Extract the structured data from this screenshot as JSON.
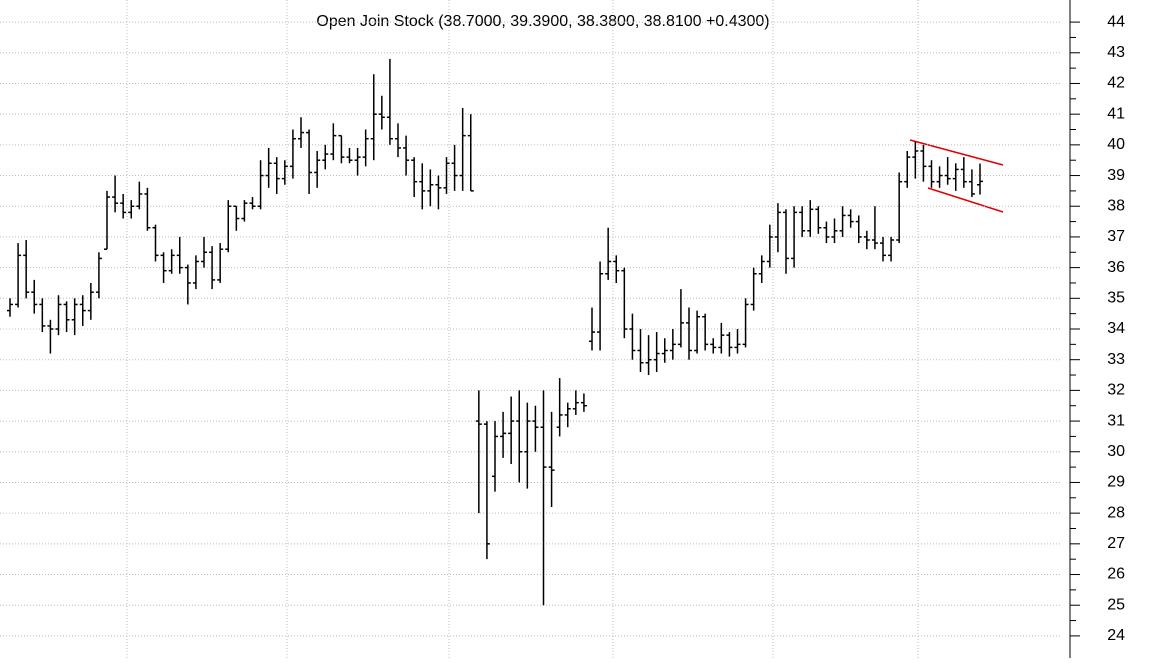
{
  "chart_data": {
    "type": "ohlc",
    "subtitle": "Open Join Stock (38.7000, 39.3900, 38.3800, 38.8100 +0.4300)",
    "color": "#000000",
    "grid": true,
    "ylim": [
      23.28,
      44.72
    ],
    "yticks": [
      24,
      25,
      26,
      27,
      28,
      29,
      30,
      31,
      32,
      33,
      34,
      35,
      36,
      37,
      38,
      39,
      40,
      41,
      42,
      43,
      44
    ],
    "ohlc": [
      [
        34.6,
        35.0,
        34.4,
        34.8
      ],
      [
        34.8,
        36.8,
        34.7,
        36.4
      ],
      [
        36.4,
        36.9,
        35.0,
        35.2
      ],
      [
        35.2,
        35.6,
        34.5,
        34.8
      ],
      [
        34.8,
        35.0,
        33.9,
        34.1
      ],
      [
        34.1,
        34.3,
        33.2,
        34.0
      ],
      [
        34.0,
        35.1,
        33.8,
        34.8
      ],
      [
        34.8,
        34.9,
        33.9,
        34.3
      ],
      [
        34.3,
        35.0,
        33.8,
        34.8
      ],
      [
        34.8,
        35.1,
        34.1,
        34.6
      ],
      [
        34.6,
        35.5,
        34.3,
        35.2
      ],
      [
        35.2,
        36.5,
        35.0,
        36.3
      ],
      [
        36.6,
        38.5,
        36.6,
        38.3
      ],
      [
        38.3,
        39.0,
        37.8,
        38.1
      ],
      [
        38.1,
        38.4,
        37.6,
        37.8
      ],
      [
        37.8,
        38.2,
        37.6,
        38.0
      ],
      [
        38.0,
        38.8,
        37.9,
        38.4
      ],
      [
        38.4,
        38.6,
        37.2,
        37.3
      ],
      [
        37.3,
        37.4,
        36.2,
        36.4
      ],
      [
        36.4,
        36.5,
        35.5,
        35.9
      ],
      [
        35.9,
        36.6,
        35.8,
        36.4
      ],
      [
        36.4,
        37.0,
        35.8,
        36.0
      ],
      [
        36.0,
        36.1,
        34.8,
        35.5
      ],
      [
        35.5,
        36.4,
        35.3,
        36.2
      ],
      [
        36.2,
        37.0,
        36.0,
        36.5
      ],
      [
        36.5,
        36.7,
        35.3,
        35.6
      ],
      [
        35.6,
        36.8,
        35.5,
        36.6
      ],
      [
        36.6,
        38.2,
        36.5,
        38.0
      ],
      [
        38.0,
        38.0,
        37.2,
        37.6
      ],
      [
        37.6,
        38.2,
        37.5,
        38.1
      ],
      [
        38.1,
        38.3,
        37.9,
        38.0
      ],
      [
        38.0,
        39.5,
        37.9,
        39.0
      ],
      [
        39.0,
        39.9,
        38.6,
        39.4
      ],
      [
        39.4,
        39.6,
        38.4,
        38.9
      ],
      [
        38.9,
        39.5,
        38.7,
        39.3
      ],
      [
        39.3,
        40.5,
        38.9,
        40.2
      ],
      [
        40.2,
        40.9,
        39.9,
        40.4
      ],
      [
        40.4,
        40.5,
        38.4,
        39.1
      ],
      [
        39.1,
        39.8,
        38.6,
        39.5
      ],
      [
        39.5,
        40.0,
        39.2,
        39.7
      ],
      [
        39.7,
        40.7,
        39.5,
        40.3
      ],
      [
        40.3,
        40.3,
        39.4,
        39.6
      ],
      [
        39.6,
        39.9,
        39.4,
        39.5
      ],
      [
        39.5,
        39.9,
        39.0,
        39.6
      ],
      [
        39.6,
        40.5,
        39.3,
        40.2
      ],
      [
        40.2,
        42.3,
        39.5,
        41.0
      ],
      [
        41.0,
        41.6,
        40.5,
        40.9
      ],
      [
        40.9,
        42.8,
        40.0,
        40.2
      ],
      [
        40.2,
        40.7,
        39.6,
        39.9
      ],
      [
        39.9,
        40.3,
        39.0,
        39.5
      ],
      [
        39.5,
        39.6,
        38.3,
        38.8
      ],
      [
        38.8,
        39.4,
        37.9,
        38.5
      ],
      [
        38.5,
        39.2,
        38.0,
        38.7
      ],
      [
        38.7,
        39.0,
        37.9,
        38.6
      ],
      [
        38.6,
        39.6,
        38.4,
        39.4
      ],
      [
        39.4,
        40.0,
        38.5,
        39.0
      ],
      [
        39.0,
        41.2,
        38.5,
        40.3
      ],
      [
        40.3,
        41.0,
        38.5,
        38.5
      ],
      [
        31.0,
        32.0,
        28.0,
        30.9
      ],
      [
        30.9,
        31.0,
        26.5,
        27.0
      ],
      [
        29.2,
        31.0,
        28.7,
        30.5
      ],
      [
        30.5,
        31.3,
        29.8,
        30.6
      ],
      [
        30.6,
        31.8,
        29.6,
        31.0
      ],
      [
        31.0,
        32.0,
        29.0,
        30.0
      ],
      [
        30.0,
        31.6,
        28.8,
        31.0
      ],
      [
        31.0,
        31.5,
        30.0,
        30.8
      ],
      [
        30.8,
        32.0,
        25.0,
        29.5
      ],
      [
        29.5,
        31.3,
        28.2,
        29.4
      ],
      [
        30.8,
        32.4,
        30.5,
        31.2
      ],
      [
        31.2,
        31.6,
        30.8,
        31.4
      ],
      [
        31.4,
        32.0,
        31.2,
        31.6
      ],
      [
        31.6,
        31.9,
        31.3,
        31.5
      ],
      [
        33.6,
        34.7,
        33.3,
        33.9
      ],
      [
        33.9,
        36.2,
        33.3,
        35.8
      ],
      [
        35.8,
        37.3,
        35.6,
        36.2
      ],
      [
        36.2,
        36.4,
        35.5,
        35.9
      ],
      [
        35.9,
        36.0,
        33.7,
        34.0
      ],
      [
        34.0,
        34.5,
        33.0,
        33.3
      ],
      [
        33.3,
        34.0,
        32.6,
        32.9
      ],
      [
        32.9,
        33.8,
        32.5,
        33.0
      ],
      [
        33.0,
        33.9,
        32.6,
        33.2
      ],
      [
        33.2,
        33.7,
        32.9,
        33.3
      ],
      [
        33.3,
        34.0,
        33.0,
        33.5
      ],
      [
        33.5,
        35.3,
        33.4,
        34.2
      ],
      [
        34.2,
        34.7,
        33.0,
        33.3
      ],
      [
        33.3,
        34.6,
        33.2,
        34.4
      ],
      [
        34.4,
        34.5,
        33.3,
        33.5
      ],
      [
        33.5,
        33.7,
        33.2,
        33.4
      ],
      [
        33.4,
        34.2,
        33.2,
        33.8
      ],
      [
        33.8,
        33.9,
        33.1,
        33.4
      ],
      [
        33.4,
        34.0,
        33.2,
        33.5
      ],
      [
        33.5,
        35.0,
        33.4,
        34.8
      ],
      [
        34.8,
        36.0,
        34.6,
        35.8
      ],
      [
        35.8,
        36.4,
        35.5,
        36.2
      ],
      [
        36.2,
        37.4,
        36.0,
        37.0
      ],
      [
        37.0,
        38.1,
        36.5,
        37.8
      ],
      [
        37.8,
        37.9,
        35.8,
        36.3
      ],
      [
        36.3,
        38.0,
        36.0,
        37.8
      ],
      [
        37.8,
        38.0,
        37.0,
        37.2
      ],
      [
        37.2,
        38.2,
        37.0,
        37.9
      ],
      [
        37.9,
        38.0,
        37.1,
        37.3
      ],
      [
        37.3,
        37.5,
        36.8,
        37.0
      ],
      [
        37.0,
        37.6,
        36.8,
        37.2
      ],
      [
        37.2,
        38.0,
        37.0,
        37.7
      ],
      [
        37.7,
        37.9,
        37.3,
        37.5
      ],
      [
        37.5,
        37.7,
        36.8,
        37.0
      ],
      [
        37.0,
        37.2,
        36.6,
        36.9
      ],
      [
        36.9,
        38.0,
        36.6,
        36.8
      ],
      [
        36.8,
        37.0,
        36.2,
        36.4
      ],
      [
        36.4,
        37.0,
        36.2,
        36.9
      ],
      [
        36.9,
        39.1,
        36.8,
        38.8
      ],
      [
        38.8,
        39.8,
        38.6,
        39.6
      ],
      [
        39.6,
        40.1,
        38.9,
        39.8
      ],
      [
        39.8,
        40.0,
        38.8,
        39.3
      ],
      [
        39.3,
        39.5,
        38.6,
        38.8
      ],
      [
        38.8,
        39.3,
        38.6,
        39.0
      ],
      [
        39.0,
        39.6,
        38.7,
        38.9
      ],
      [
        38.9,
        39.4,
        38.5,
        39.2
      ],
      [
        39.2,
        39.6,
        38.6,
        38.8
      ],
      [
        38.8,
        39.2,
        38.3,
        38.4
      ],
      [
        38.7,
        39.39,
        38.38,
        38.81
      ]
    ]
  }
}
